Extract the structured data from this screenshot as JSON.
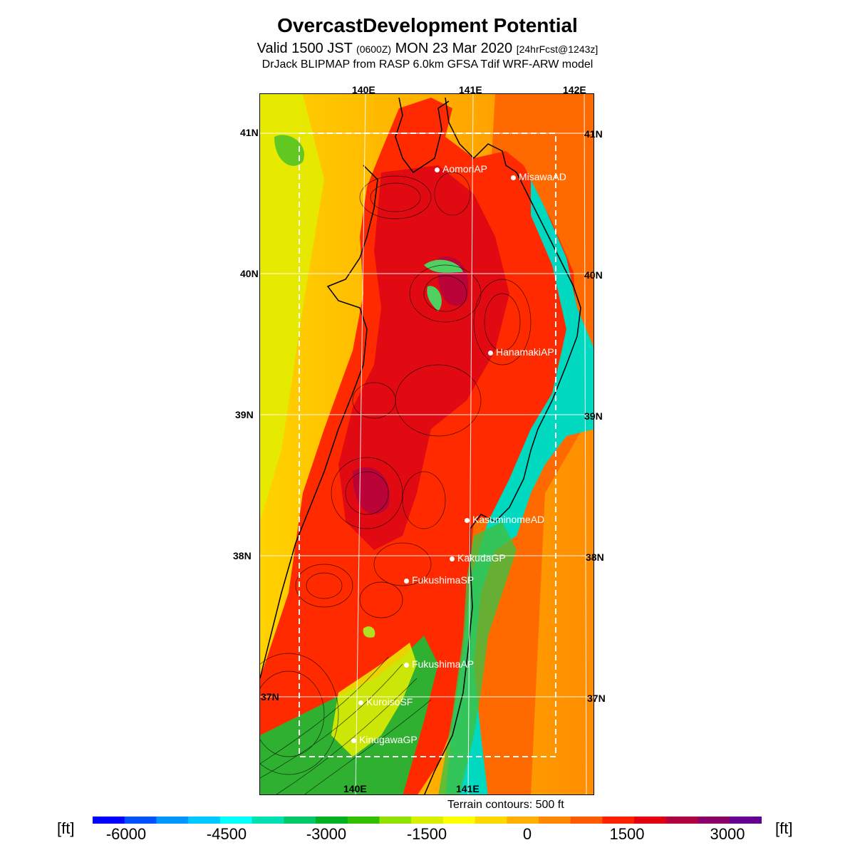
{
  "header": {
    "title": "OvercastDevelopment Potential",
    "valid_prefix": "Valid 1500 JST",
    "valid_zulu": "(0600Z)",
    "valid_date": "MON 23 Mar 2020",
    "forecast": "[24hrFcst@1243z]",
    "model": "DrJack BLIPMAP from RASP 6.0km GFSA Tdif WRF-ARW model"
  },
  "map": {
    "lon_labels_top": [
      "140E",
      "141E",
      "142E"
    ],
    "lon_labels_bottom": [
      "140E",
      "141E"
    ],
    "lat_labels_left": [
      "41N",
      "40N",
      "39N",
      "38N",
      "37N"
    ],
    "lat_labels_right": [
      "41N",
      "40N",
      "39N",
      "38N",
      "37N"
    ],
    "stations": [
      {
        "name": "AomoriAP"
      },
      {
        "name": "MisawaAD"
      },
      {
        "name": "HanamakiAP"
      },
      {
        "name": "KasuminomeAD"
      },
      {
        "name": "KakudaGP"
      },
      {
        "name": "FukushimaSP"
      },
      {
        "name": "FukushimaAP"
      },
      {
        "name": "KuroisoSF"
      },
      {
        "name": "KinugawaGP"
      }
    ],
    "terrain_note": "Terrain contours: 500 ft"
  },
  "colorbar": {
    "unit_left": "[ft]",
    "unit_right": "[ft]",
    "tick_labels": [
      "-6000",
      "-4500",
      "-3000",
      "-1500",
      "0",
      "1500",
      "3000"
    ],
    "colors": [
      "#0000ff",
      "#0050ff",
      "#0096ff",
      "#00c8ff",
      "#00ffff",
      "#00e0b0",
      "#00c868",
      "#00b020",
      "#30c000",
      "#90e000",
      "#d8f000",
      "#ffff00",
      "#ffd800",
      "#ffb000",
      "#ff8800",
      "#ff5a00",
      "#ff2000",
      "#e00010",
      "#b00040",
      "#880068",
      "#660090"
    ]
  },
  "colors": {
    "ocean_positive": "#ffa000",
    "land_positive": "#ff3000",
    "coastal_negative": "#00d0a0",
    "grid": "#ffffff",
    "contour": "#000000"
  }
}
